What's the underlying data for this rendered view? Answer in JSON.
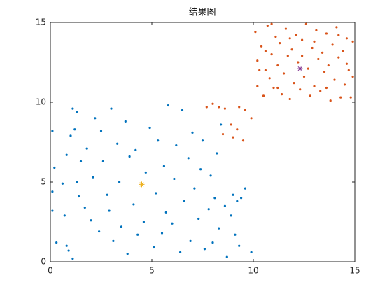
{
  "chart_data": {
    "type": "scatter",
    "title": "结果图",
    "xlim": [
      0,
      15
    ],
    "ylim": [
      0,
      15
    ],
    "xticks": [
      0,
      5,
      10,
      15
    ],
    "yticks": [
      0,
      5,
      10,
      15
    ],
    "box": true,
    "series": [
      {
        "color": "#0072bd",
        "marker": "dot",
        "x": [
          0.1,
          0.2,
          0.1,
          0.1,
          0.3,
          0.6,
          0.8,
          0.7,
          0.8,
          0.9,
          1.0,
          1.1,
          1.2,
          1.3,
          1.1,
          1.3,
          1.4,
          1.5,
          1.7,
          1.8,
          2.0,
          2.1,
          2.2,
          2.4,
          2.5,
          2.6,
          2.8,
          2.9,
          3.0,
          3.1,
          3.3,
          3.4,
          3.5,
          3.7,
          3.8,
          3.9,
          4.1,
          4.2,
          4.3,
          4.6,
          4.7,
          4.9,
          5.1,
          5.2,
          5.3,
          5.5,
          5.6,
          5.7,
          5.8,
          6.0,
          6.1,
          6.2,
          6.4,
          6.5,
          6.6,
          6.8,
          6.9,
          7.0,
          7.1,
          7.3,
          7.4,
          7.5,
          7.6,
          7.8,
          7.9,
          8.0,
          8.1,
          8.2,
          8.3,
          8.4,
          8.6,
          8.7,
          8.9,
          9.0,
          9.1,
          9.2,
          9.3,
          9.4,
          9.6,
          9.9
        ],
        "y": [
          8.2,
          5.9,
          4.4,
          3.2,
          1.2,
          4.9,
          6.7,
          2.9,
          1.0,
          0.7,
          7.9,
          9.6,
          8.3,
          9.4,
          0.2,
          5.0,
          4.1,
          6.3,
          3.4,
          7.1,
          2.6,
          5.3,
          9.0,
          1.9,
          8.2,
          6.3,
          4.2,
          3.2,
          9.6,
          1.3,
          7.4,
          5.0,
          2.2,
          8.8,
          0.5,
          6.6,
          3.6,
          7.0,
          1.7,
          2.5,
          5.6,
          8.4,
          0.9,
          4.3,
          7.6,
          1.8,
          6.0,
          3.1,
          9.8,
          2.4,
          5.2,
          7.3,
          0.6,
          9.5,
          3.8,
          6.5,
          1.3,
          8.1,
          4.6,
          2.7,
          5.8,
          7.6,
          0.8,
          3.3,
          5.4,
          1.2,
          4.0,
          6.8,
          2.1,
          8.6,
          3.5,
          0.3,
          2.9,
          4.2,
          1.7,
          3.8,
          1.0,
          4.0,
          4.6,
          0.6
        ]
      },
      {
        "color": "#d95319",
        "marker": "dot",
        "x": [
          7.7,
          8.0,
          8.3,
          8.6,
          8.9,
          9.0,
          9.2,
          9.3,
          9.5,
          9.6,
          9.9,
          8.5,
          10.1,
          10.2,
          10.2,
          10.4,
          10.5,
          10.6,
          10.7,
          10.8,
          10.9,
          11.0,
          11.1,
          11.2,
          11.3,
          11.4,
          11.5,
          11.6,
          11.7,
          11.8,
          11.9,
          12.0,
          12.1,
          12.2,
          12.3,
          12.4,
          12.5,
          12.6,
          12.7,
          12.8,
          12.9,
          13.0,
          13.1,
          13.2,
          13.3,
          13.4,
          13.5,
          13.6,
          13.7,
          13.8,
          13.9,
          14.0,
          14.1,
          14.2,
          14.3,
          14.4,
          14.5,
          14.6,
          14.7,
          14.8,
          14.9,
          14.9,
          10.3,
          10.6,
          11.2,
          11.8,
          12.4,
          13.0,
          13.6,
          14.2,
          14.6,
          10.9
        ],
        "y": [
          9.7,
          9.9,
          9.7,
          9.6,
          8.6,
          7.8,
          8.3,
          9.7,
          7.6,
          9.5,
          9.0,
          8.0,
          14.4,
          12.6,
          11.0,
          13.5,
          10.4,
          12.0,
          14.8,
          11.5,
          13.0,
          10.9,
          14.1,
          12.3,
          13.7,
          10.5,
          11.8,
          14.6,
          12.9,
          10.2,
          13.3,
          11.2,
          14.2,
          12.5,
          10.8,
          13.9,
          11.6,
          14.9,
          12.1,
          10.4,
          13.4,
          11.0,
          14.5,
          12.7,
          10.7,
          13.1,
          11.9,
          14.3,
          12.3,
          10.1,
          13.6,
          11.4,
          14.7,
          12.8,
          10.3,
          13.2,
          11.1,
          14.0,
          12.0,
          10.3,
          13.8,
          11.6,
          12.0,
          13.2,
          10.9,
          14.0,
          12.9,
          13.8,
          10.9,
          14.2,
          12.4,
          14.9
        ]
      },
      {
        "color": "#edb120",
        "marker": "star",
        "x": [
          4.5
        ],
        "y": [
          4.85
        ]
      },
      {
        "color": "#7e2f8e",
        "marker": "star",
        "x": [
          12.3
        ],
        "y": [
          12.1
        ]
      }
    ]
  }
}
